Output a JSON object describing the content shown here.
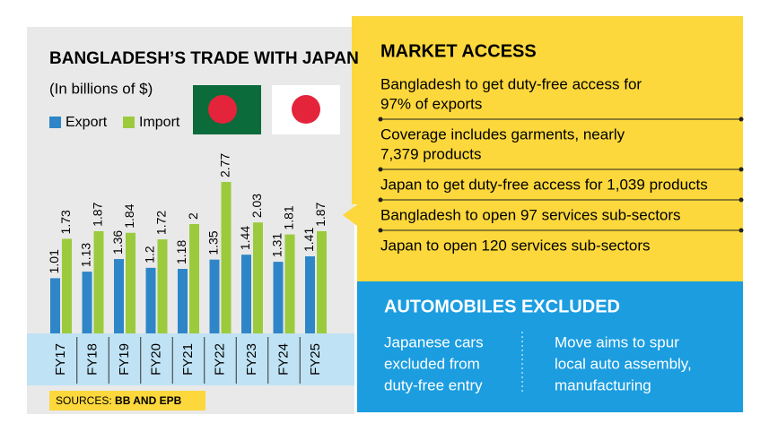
{
  "chart_data": {
    "type": "bar",
    "title": "BANGLADESH’S TRADE WITH JAPAN",
    "subtitle": "(In billions of $)",
    "categories": [
      "FY17",
      "FY18",
      "FY19",
      "FY20",
      "FY21",
      "FY22",
      "FY23",
      "FY24",
      "FY25"
    ],
    "series": [
      {
        "name": "Export",
        "color": "#2e86c8",
        "values": [
          1.01,
          1.13,
          1.36,
          1.2,
          1.18,
          1.35,
          1.44,
          1.31,
          1.41
        ]
      },
      {
        "name": "Import",
        "color": "#9bcb3c",
        "values": [
          1.73,
          1.87,
          1.84,
          1.72,
          2,
          2.77,
          2.03,
          1.81,
          1.87
        ]
      }
    ],
    "source": {
      "label": "SOURCES:",
      "text": "BB AND EPB"
    }
  },
  "market_access": {
    "title": "MARKET ACCESS",
    "items": [
      [
        "Bangladesh to get duty-free access for",
        "97% of exports"
      ],
      [
        "Coverage includes garments, nearly",
        "7,379 products"
      ],
      [
        "Japan to get duty-free access for 1,039 products"
      ],
      [
        "Bangladesh to open 97 services sub-sectors"
      ],
      [
        "Japan to open 120 services sub-sectors"
      ]
    ]
  },
  "automobiles": {
    "title": "AUTOMOBILES EXCLUDED",
    "columns": [
      [
        "Japanese cars",
        "excluded from",
        "duty-free entry"
      ],
      [
        "Move aims to spur",
        "local auto assembly,",
        "manufacturing"
      ]
    ]
  }
}
